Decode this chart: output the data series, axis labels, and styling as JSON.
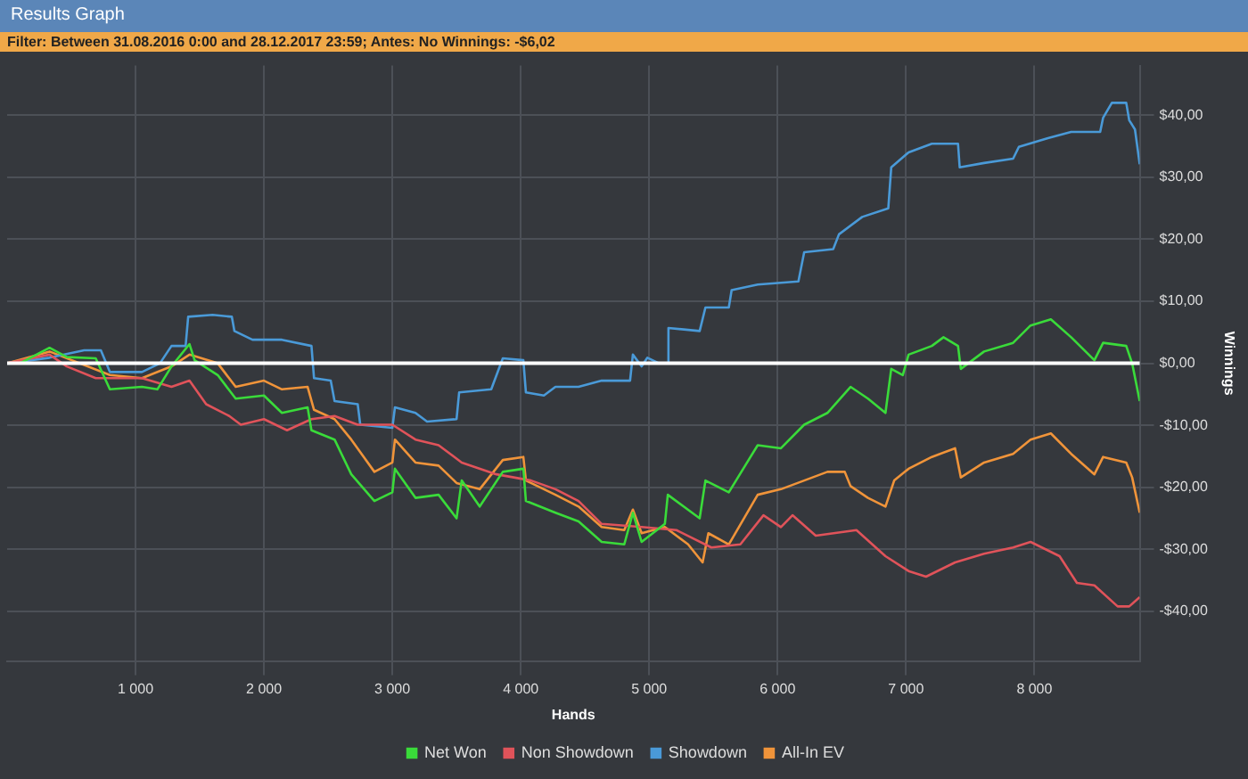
{
  "chart_data": {
    "type": "line",
    "title": "Results Graph",
    "subtitle": "Filter: Between 31.08.2016 0:00 and 28.12.2017 23:59; Antes: No  Winnings: -$6,02",
    "xlabel": "Hands",
    "ylabel": "Winnings",
    "xlim": [
      0,
      8820
    ],
    "ylim": [
      -48,
      48
    ],
    "xticks": [
      {
        "value": 1000,
        "label": "1 000"
      },
      {
        "value": 2000,
        "label": "2 000"
      },
      {
        "value": 3000,
        "label": "3 000"
      },
      {
        "value": 4000,
        "label": "4 000"
      },
      {
        "value": 5000,
        "label": "5 000"
      },
      {
        "value": 6000,
        "label": "6 000"
      },
      {
        "value": 7000,
        "label": "7 000"
      },
      {
        "value": 8000,
        "label": "8 000"
      }
    ],
    "yticks": [
      {
        "value": -40,
        "label": "-$40,00"
      },
      {
        "value": -30,
        "label": "-$30,00"
      },
      {
        "value": -20,
        "label": "-$20,00"
      },
      {
        "value": -10,
        "label": "-$10,00"
      },
      {
        "value": 0,
        "label": "$0,00"
      },
      {
        "value": 10,
        "label": "$10,00"
      },
      {
        "value": 20,
        "label": "$20,00"
      },
      {
        "value": 30,
        "label": "$30,00"
      },
      {
        "value": 40,
        "label": "$40,00"
      }
    ],
    "grid": true,
    "legend": "bottom",
    "marker": "none",
    "line_style": "solid",
    "ref_lines": [
      {
        "axis": "y",
        "value": 0,
        "color": "#ffffff"
      }
    ],
    "series": [
      {
        "name": "Net Won",
        "color": "#3adb3a",
        "x": [
          0,
          100,
          330,
          465,
          690,
          800,
          1050,
          1170,
          1280,
          1420,
          1460,
          1640,
          1780,
          2000,
          2140,
          2340,
          2370,
          2550,
          2680,
          2860,
          3000,
          3020,
          3180,
          3360,
          3500,
          3540,
          3680,
          3860,
          4020,
          4040,
          4270,
          4450,
          4630,
          4806,
          4873,
          4941,
          5122,
          5145,
          5393,
          5438,
          5620,
          5845,
          6026,
          6207,
          6388,
          6568,
          6704,
          6840,
          6885,
          6975,
          7020,
          7201,
          7292,
          7405,
          7427,
          7608,
          7834,
          7970,
          8128,
          8286,
          8467,
          8535,
          8715,
          8761,
          8820
        ],
        "values": [
          0,
          0,
          2.5,
          1,
          0.8,
          -4.2,
          -3.8,
          -4.2,
          -0.5,
          3.1,
          0.5,
          -1.9,
          -5.7,
          -5.2,
          -8,
          -7.1,
          -10.8,
          -12.3,
          -17.9,
          -22.2,
          -20.8,
          -17,
          -21.7,
          -21.2,
          -25,
          -18.9,
          -23.1,
          -17.5,
          -17,
          -22.2,
          -24.1,
          -25.5,
          -28.8,
          -29.2,
          -24.1,
          -28.8,
          -25.9,
          -21.2,
          -25,
          -18.9,
          -20.8,
          -13.2,
          -13.7,
          -9.9,
          -8,
          -3.8,
          -5.7,
          -8,
          -0.9,
          -1.9,
          1.4,
          2.8,
          4.2,
          2.8,
          -0.9,
          1.9,
          3.3,
          6.1,
          7.1,
          4.2,
          0.5,
          3.3,
          2.8,
          0,
          -6.1
        ]
      },
      {
        "name": "Non Showdown",
        "color": "#e0535a",
        "x": [
          0,
          330,
          465,
          690,
          1050,
          1280,
          1420,
          1550,
          1730,
          1820,
          2000,
          2180,
          2370,
          2550,
          2730,
          3000,
          3180,
          3360,
          3540,
          3810,
          4080,
          4270,
          4450,
          4630,
          4941,
          5212,
          5484,
          5710,
          5890,
          6026,
          6116,
          6297,
          6614,
          6840,
          7020,
          7156,
          7382,
          7608,
          7834,
          7970,
          8196,
          8331,
          8467,
          8648,
          8738,
          8820
        ],
        "values": [
          0,
          1.4,
          -0.5,
          -2.4,
          -2.4,
          -3.8,
          -2.8,
          -6.6,
          -8.5,
          -9.9,
          -9,
          -10.8,
          -9,
          -8.5,
          -9.9,
          -9.9,
          -12.3,
          -13.2,
          -16,
          -17.9,
          -18.9,
          -20.3,
          -22.2,
          -25.9,
          -26.4,
          -26.9,
          -29.7,
          -29.2,
          -24.5,
          -26.4,
          -24.5,
          -27.8,
          -26.9,
          -31.1,
          -33.5,
          -34.4,
          -32.1,
          -30.7,
          -29.7,
          -28.8,
          -31.1,
          -35.4,
          -35.8,
          -39.2,
          -39.2,
          -37.7
        ]
      },
      {
        "name": "Showdown",
        "color": "#4a9ad8",
        "x": [
          0,
          330,
          600,
          730,
          800,
          1050,
          1190,
          1280,
          1390,
          1410,
          1600,
          1750,
          1770,
          1910,
          2140,
          2370,
          2390,
          2520,
          2550,
          2730,
          2750,
          3000,
          3020,
          3180,
          3270,
          3500,
          3520,
          3770,
          3860,
          4020,
          4040,
          4180,
          4270,
          4450,
          4630,
          4851,
          4873,
          4941,
          4986,
          5077,
          5145,
          5150,
          5393,
          5438,
          5620,
          5642,
          5845,
          6162,
          6207,
          6433,
          6478,
          6659,
          6862,
          6885,
          7020,
          7201,
          7405,
          7418,
          7608,
          7834,
          7879,
          8105,
          8286,
          8512,
          8535,
          8603,
          8715,
          8738,
          8783,
          8820
        ],
        "values": [
          0,
          0.9,
          2.1,
          2.1,
          -1.4,
          -1.4,
          0,
          2.8,
          2.8,
          7.5,
          7.8,
          7.5,
          5.2,
          3.8,
          3.8,
          2.8,
          -2.4,
          -2.8,
          -6.1,
          -6.6,
          -9.9,
          -10.4,
          -7.1,
          -8,
          -9.4,
          -9,
          -4.7,
          -4.2,
          0.8,
          0.5,
          -4.7,
          -5.2,
          -3.8,
          -3.8,
          -2.8,
          -2.8,
          1.4,
          -0.5,
          0.9,
          0,
          0,
          5.7,
          5.2,
          9,
          9,
          11.8,
          12.7,
          13.2,
          17.9,
          18.4,
          20.8,
          23.6,
          25,
          31.6,
          34,
          35.4,
          35.4,
          31.6,
          32.3,
          33,
          34.9,
          36.3,
          37.3,
          37.3,
          39.6,
          42,
          42,
          39.2,
          37.7,
          32.1
        ]
      },
      {
        "name": "All-In EV",
        "color": "#f0943a",
        "x": [
          0,
          330,
          800,
          1050,
          1280,
          1420,
          1640,
          1780,
          2000,
          2140,
          2340,
          2390,
          2550,
          2680,
          2860,
          3000,
          3020,
          3180,
          3360,
          3500,
          3680,
          3860,
          4020,
          4040,
          4270,
          4450,
          4630,
          4806,
          4873,
          4941,
          5122,
          5303,
          5416,
          5461,
          5620,
          5845,
          6026,
          6207,
          6388,
          6523,
          6568,
          6704,
          6840,
          6908,
          7020,
          7201,
          7382,
          7427,
          7608,
          7834,
          7970,
          8128,
          8286,
          8467,
          8535,
          8715,
          8761,
          8820
        ],
        "values": [
          0,
          1.9,
          -1.9,
          -2.4,
          -0.5,
          1.4,
          0,
          -3.8,
          -2.8,
          -4.2,
          -3.8,
          -7.5,
          -9,
          -12.3,
          -17.5,
          -16,
          -12.3,
          -16,
          -16.5,
          -19.3,
          -20.3,
          -15.6,
          -15.1,
          -18.9,
          -21.2,
          -23.1,
          -26.4,
          -26.9,
          -23.6,
          -27.4,
          -26.4,
          -29.2,
          -32.1,
          -27.4,
          -29.2,
          -21.2,
          -20.3,
          -18.9,
          -17.5,
          -17.5,
          -19.8,
          -21.7,
          -23.1,
          -18.9,
          -17,
          -15.1,
          -13.7,
          -18.4,
          -16,
          -14.6,
          -12.3,
          -11.3,
          -14.6,
          -17.9,
          -15.1,
          -16,
          -18.4,
          -24.1
        ]
      }
    ]
  }
}
